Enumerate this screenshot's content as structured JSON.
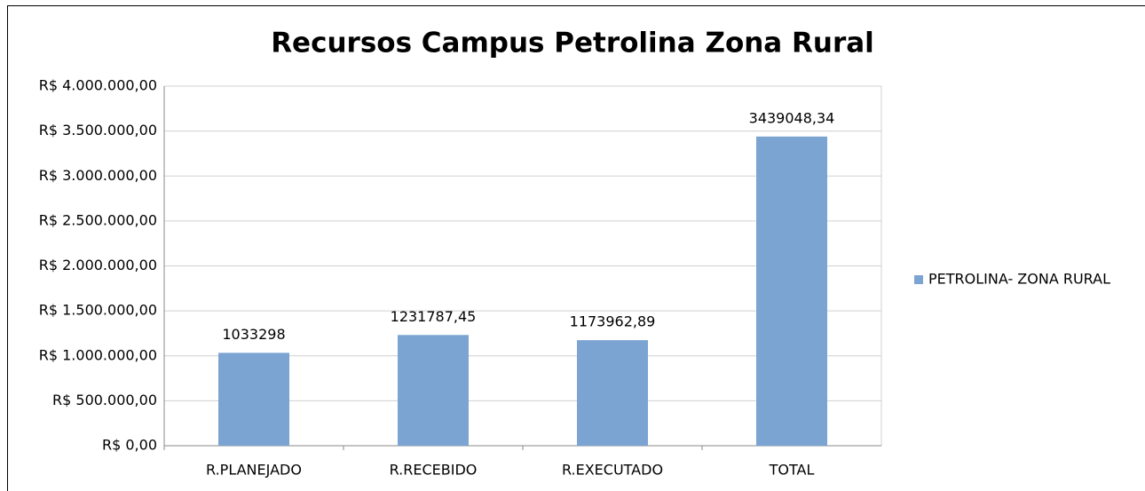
{
  "chart_data": {
    "type": "bar",
    "title": "Recursos Campus Petrolina Zona Rural",
    "categories": [
      "R.PLANEJADO",
      "R.RECEBIDO",
      "R.EXECUTADO",
      "TOTAL"
    ],
    "series": [
      {
        "name": "PETROLINA- ZONA RURAL",
        "color": "#7ba4d2",
        "values": [
          1033298,
          1231787.45,
          1173962.89,
          3439048.34
        ],
        "value_labels": [
          "1033298",
          "1231787,45",
          "1173962,89",
          "3439048,34"
        ]
      }
    ],
    "ylim": [
      0,
      4000000
    ],
    "yticks": [
      {
        "value": 0,
        "label": "R$ 0,00"
      },
      {
        "value": 500000,
        "label": "R$ 500.000,00"
      },
      {
        "value": 1000000,
        "label": "R$ 1.000.000,00"
      },
      {
        "value": 1500000,
        "label": "R$ 1.500.000,00"
      },
      {
        "value": 2000000,
        "label": "R$ 2.000.000,00"
      },
      {
        "value": 2500000,
        "label": "R$ 2.500.000,00"
      },
      {
        "value": 3000000,
        "label": "R$ 3.000.000,00"
      },
      {
        "value": 3500000,
        "label": "R$ 3.500.000,00"
      },
      {
        "value": 4000000,
        "label": "R$ 4.000.000,00"
      }
    ],
    "grid": true,
    "legend": "right"
  }
}
